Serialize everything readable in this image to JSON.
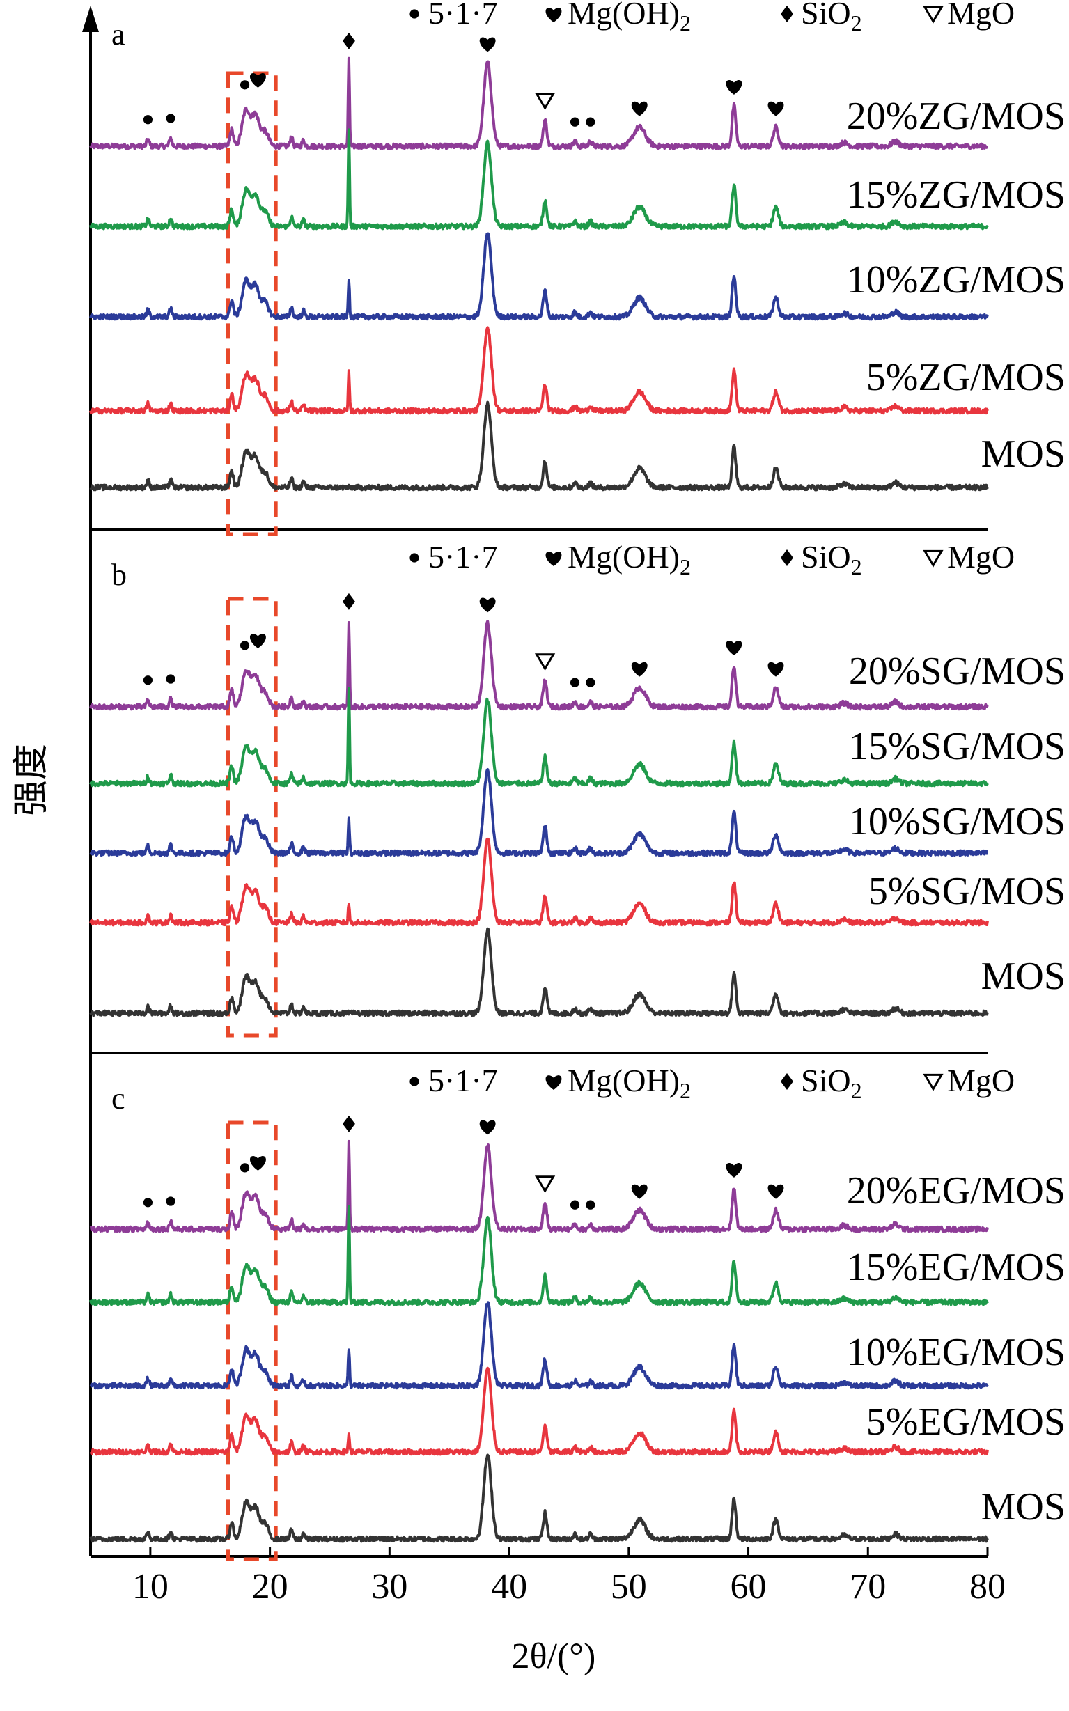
{
  "chart_data": {
    "type": "line",
    "xlabel": "2θ/(°)",
    "ylabel": "强度",
    "xlim": [
      5,
      80
    ],
    "xticks": [
      10,
      20,
      30,
      40,
      50,
      60,
      70,
      80
    ],
    "legend": [
      {
        "symbol": "circle",
        "label": "5·1·7"
      },
      {
        "symbol": "heart",
        "label": "Mg(OH)",
        "sub": "2"
      },
      {
        "symbol": "diamond",
        "label": "SiO",
        "sub": "2"
      },
      {
        "symbol": "triangle",
        "label": "MgO"
      }
    ],
    "highlight_range": [
      16.5,
      20.5
    ],
    "peaks": [
      {
        "x": 9.8,
        "phase": "circle"
      },
      {
        "x": 11.7,
        "phase": "circle"
      },
      {
        "x": 18.0,
        "phase": "circle"
      },
      {
        "x": 18.8,
        "phase": "heart"
      },
      {
        "x": 26.6,
        "phase": "diamond"
      },
      {
        "x": 38.2,
        "phase": "heart"
      },
      {
        "x": 43.0,
        "phase": "triangle"
      },
      {
        "x": 45.5,
        "phase": "circle"
      },
      {
        "x": 46.8,
        "phase": "circle"
      },
      {
        "x": 50.9,
        "phase": "heart"
      },
      {
        "x": 58.8,
        "phase": "heart"
      },
      {
        "x": 62.3,
        "phase": "heart"
      }
    ],
    "panels": [
      {
        "label": "a",
        "series": [
          {
            "name": "20%ZG/MOS",
            "color": "#8e3c97",
            "sio2": 0.9
          },
          {
            "name": "15%ZG/MOS",
            "color": "#1f9a4a",
            "sio2": 1.0
          },
          {
            "name": "10%ZG/MOS",
            "color": "#2b3b99",
            "sio2": 0.4
          },
          {
            "name": "5%ZG/MOS",
            "color": "#e8353e",
            "sio2": 0.4
          },
          {
            "name": "MOS",
            "color": "#333333",
            "sio2": 0.0
          }
        ]
      },
      {
        "label": "b",
        "series": [
          {
            "name": "20%SG/MOS",
            "color": "#8e3c97",
            "sio2": 0.9
          },
          {
            "name": "15%SG/MOS",
            "color": "#1f9a4a",
            "sio2": 1.0
          },
          {
            "name": "10%SG/MOS",
            "color": "#2b3b99",
            "sio2": 0.35
          },
          {
            "name": "5%SG/MOS",
            "color": "#e8353e",
            "sio2": 0.2
          },
          {
            "name": "MOS",
            "color": "#333333",
            "sio2": 0.0
          }
        ]
      },
      {
        "label": "c",
        "series": [
          {
            "name": "20%EG/MOS",
            "color": "#8e3c97",
            "sio2": 0.9
          },
          {
            "name": "15%EG/MOS",
            "color": "#1f9a4a",
            "sio2": 1.0
          },
          {
            "name": "10%EG/MOS",
            "color": "#2b3b99",
            "sio2": 0.4
          },
          {
            "name": "5%EG/MOS",
            "color": "#e8353e",
            "sio2": 0.2
          },
          {
            "name": "MOS",
            "color": "#333333",
            "sio2": 0.0
          }
        ]
      }
    ]
  }
}
